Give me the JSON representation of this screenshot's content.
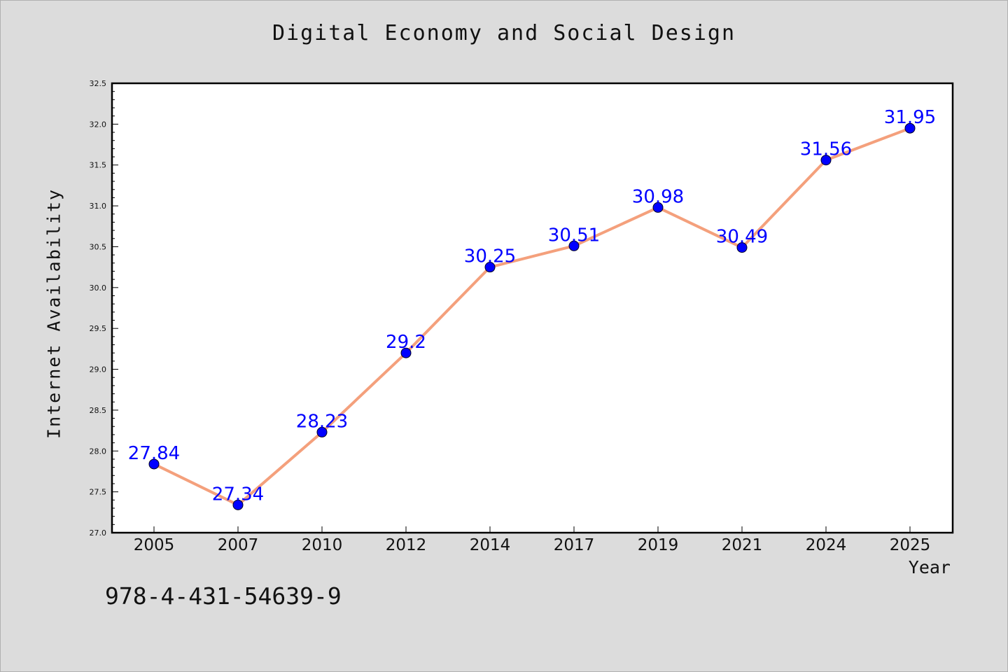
{
  "chart_data": {
    "type": "line",
    "title": "Digital Economy and Social Design",
    "xlabel": "Year",
    "ylabel": "Internet Availability",
    "categories": [
      "2005",
      "2007",
      "2010",
      "2012",
      "2014",
      "2017",
      "2019",
      "2021",
      "2024",
      "2025"
    ],
    "series": [
      {
        "values": [
          27.84,
          27.34,
          28.23,
          29.2,
          30.25,
          30.51,
          30.98,
          30.49,
          31.56,
          31.95
        ],
        "data_labels": [
          "27.84",
          "27.34",
          "28.23",
          "29.2",
          "30.25",
          "30.51",
          "30.98",
          "30.49",
          "31.56",
          "31.95"
        ],
        "line_color": "#f4a07c",
        "marker_color": "#0000ff"
      }
    ],
    "ylim": [
      27.0,
      32.5
    ],
    "yticks": [
      "27.0",
      "27.5",
      "28.0",
      "28.5",
      "29.0",
      "29.5",
      "30.0",
      "30.5",
      "31.0",
      "31.5",
      "32.0",
      "32.5"
    ],
    "grid": false,
    "legend": "none"
  },
  "footer": {
    "isbn": "978-4-431-54639-9"
  },
  "colors": {
    "background": "#dcdcdc",
    "plot_background": "#ffffff",
    "line": "#f4a07c",
    "marker": "#0000ff",
    "data_label": "#0000ff"
  }
}
